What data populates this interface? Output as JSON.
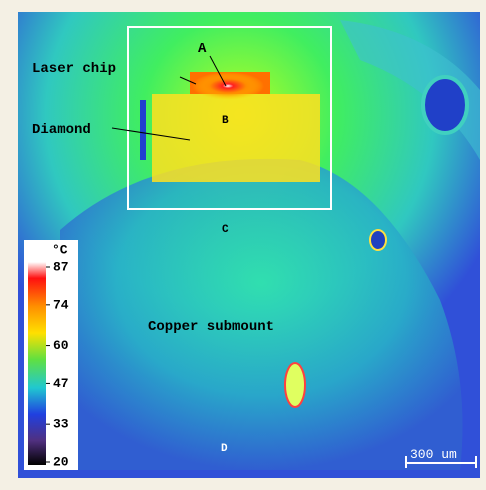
{
  "labels": {
    "point_a": "A",
    "laser_chip": "Laser chip",
    "point_b": "B",
    "diamond": "Diamond",
    "point_c": "C",
    "copper_submount": "Copper submount",
    "point_d": "D"
  },
  "colorbar": {
    "unit": "°C",
    "range": [
      20,
      87
    ],
    "ticks": [
      87,
      74,
      60,
      47,
      33,
      20
    ]
  },
  "scale_bar": "300 um"
}
